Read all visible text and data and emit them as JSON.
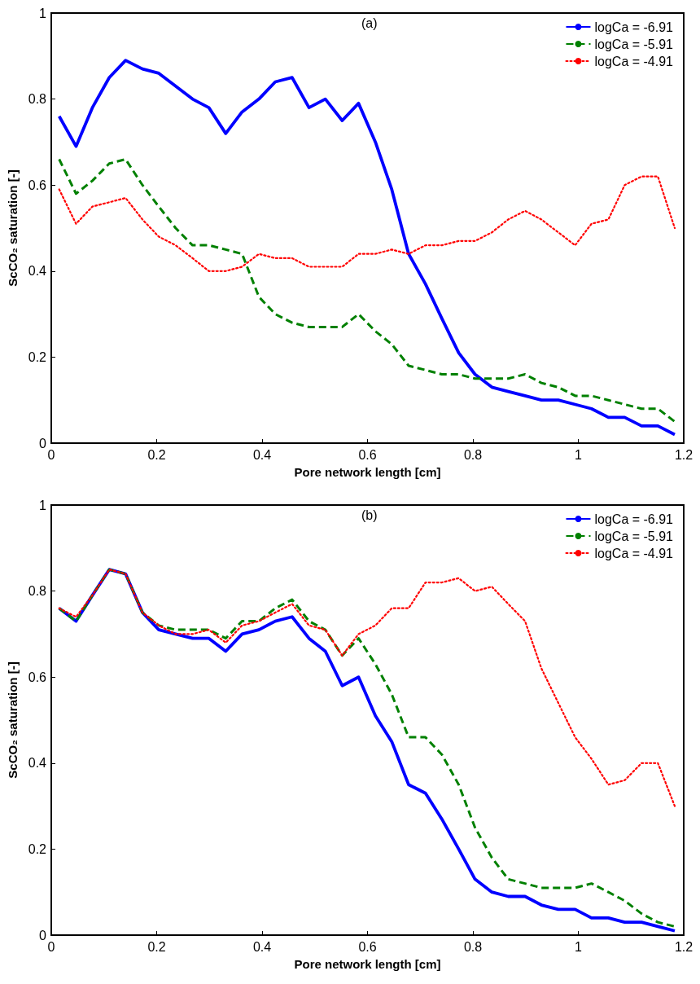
{
  "chart_data": [
    {
      "type": "line",
      "xlabel": "Pore network length [cm]",
      "ylabel": "ScCO₂ saturation [-]",
      "annotations": [
        "(a)"
      ],
      "x": [
        0.015,
        0.047,
        0.078,
        0.11,
        0.141,
        0.173,
        0.204,
        0.236,
        0.268,
        0.299,
        0.331,
        0.362,
        0.394,
        0.425,
        0.457,
        0.489,
        0.52,
        0.552,
        0.583,
        0.615,
        0.646,
        0.678,
        0.71,
        0.741,
        0.773,
        0.804,
        0.836,
        0.867,
        0.899,
        0.93,
        0.962,
        0.994,
        1.025,
        1.057,
        1.088,
        1.12,
        1.151,
        1.183
      ],
      "series": [
        {
          "name": "logCa = -6.91",
          "color": "#0000ff",
          "line_style": "solid",
          "values": [
            0.76,
            0.69,
            0.78,
            0.85,
            0.89,
            0.87,
            0.86,
            0.83,
            0.8,
            0.78,
            0.72,
            0.77,
            0.8,
            0.84,
            0.85,
            0.78,
            0.8,
            0.75,
            0.79,
            0.7,
            0.59,
            0.44,
            0.37,
            0.29,
            0.21,
            0.16,
            0.13,
            0.12,
            0.11,
            0.1,
            0.1,
            0.09,
            0.08,
            0.06,
            0.06,
            0.04,
            0.04,
            0.02
          ]
        },
        {
          "name": "logCa = -5.91",
          "color": "#008000",
          "line_style": "dashed",
          "values": [
            0.66,
            0.58,
            0.61,
            0.65,
            0.66,
            0.6,
            0.55,
            0.5,
            0.46,
            0.46,
            0.45,
            0.44,
            0.34,
            0.3,
            0.28,
            0.27,
            0.27,
            0.27,
            0.3,
            0.26,
            0.23,
            0.18,
            0.17,
            0.16,
            0.16,
            0.15,
            0.15,
            0.15,
            0.16,
            0.14,
            0.13,
            0.11,
            0.11,
            0.1,
            0.09,
            0.08,
            0.08,
            0.05
          ]
        },
        {
          "name": "logCa = -4.91",
          "color": "#ff0000",
          "line_style": "dotted",
          "values": [
            0.59,
            0.51,
            0.55,
            0.56,
            0.57,
            0.52,
            0.48,
            0.46,
            0.43,
            0.4,
            0.4,
            0.41,
            0.44,
            0.43,
            0.43,
            0.41,
            0.41,
            0.41,
            0.44,
            0.44,
            0.45,
            0.44,
            0.46,
            0.46,
            0.47,
            0.47,
            0.49,
            0.52,
            0.54,
            0.52,
            0.49,
            0.46,
            0.51,
            0.52,
            0.6,
            0.62,
            0.62,
            0.5
          ]
        }
      ],
      "xlim": [
        0,
        1.2
      ],
      "xticks": [
        0,
        0.2,
        0.4,
        0.6,
        0.8,
        1,
        1.2
      ],
      "ylim": [
        0,
        1
      ],
      "yticks": [
        0,
        0.2,
        0.4,
        0.6,
        0.8,
        1
      ],
      "grid": false,
      "legend": "top right"
    },
    {
      "type": "line",
      "xlabel": "Pore network length [cm]",
      "ylabel": "ScCO₂ saturation [-]",
      "annotations": [
        "(b)"
      ],
      "x": [
        0.015,
        0.047,
        0.078,
        0.11,
        0.141,
        0.173,
        0.204,
        0.236,
        0.268,
        0.299,
        0.331,
        0.362,
        0.394,
        0.425,
        0.457,
        0.489,
        0.52,
        0.552,
        0.583,
        0.615,
        0.646,
        0.678,
        0.71,
        0.741,
        0.773,
        0.804,
        0.836,
        0.867,
        0.899,
        0.93,
        0.962,
        0.994,
        1.025,
        1.057,
        1.088,
        1.12,
        1.151,
        1.183
      ],
      "series": [
        {
          "name": "logCa = -6.91",
          "color": "#0000ff",
          "line_style": "solid",
          "values": [
            0.76,
            0.73,
            0.79,
            0.85,
            0.84,
            0.75,
            0.71,
            0.7,
            0.69,
            0.69,
            0.66,
            0.7,
            0.71,
            0.73,
            0.74,
            0.69,
            0.66,
            0.58,
            0.6,
            0.51,
            0.45,
            0.35,
            0.33,
            0.27,
            0.2,
            0.13,
            0.1,
            0.09,
            0.09,
            0.07,
            0.06,
            0.06,
            0.04,
            0.04,
            0.03,
            0.03,
            0.02,
            0.01
          ]
        },
        {
          "name": "logCa = -5.91",
          "color": "#008000",
          "line_style": "dashed",
          "values": [
            0.76,
            0.73,
            0.79,
            0.85,
            0.84,
            0.75,
            0.72,
            0.71,
            0.71,
            0.71,
            0.69,
            0.73,
            0.73,
            0.76,
            0.78,
            0.73,
            0.71,
            0.65,
            0.69,
            0.63,
            0.56,
            0.46,
            0.46,
            0.42,
            0.35,
            0.25,
            0.18,
            0.13,
            0.12,
            0.11,
            0.11,
            0.11,
            0.12,
            0.1,
            0.08,
            0.05,
            0.03,
            0.02
          ]
        },
        {
          "name": "logCa = -4.91",
          "color": "#ff0000",
          "line_style": "dotted",
          "values": [
            0.76,
            0.74,
            0.79,
            0.85,
            0.84,
            0.75,
            0.72,
            0.7,
            0.7,
            0.71,
            0.68,
            0.72,
            0.73,
            0.75,
            0.77,
            0.72,
            0.71,
            0.65,
            0.7,
            0.72,
            0.76,
            0.76,
            0.82,
            0.82,
            0.83,
            0.8,
            0.81,
            0.77,
            0.73,
            0.62,
            0.54,
            0.46,
            0.41,
            0.35,
            0.36,
            0.4,
            0.4,
            0.3
          ]
        }
      ],
      "xlim": [
        0,
        1.2
      ],
      "xticks": [
        0,
        0.2,
        0.4,
        0.6,
        0.8,
        1,
        1.2
      ],
      "ylim": [
        0,
        1
      ],
      "yticks": [
        0,
        0.2,
        0.4,
        0.6,
        0.8,
        1
      ],
      "grid": false,
      "legend": "top right"
    }
  ]
}
